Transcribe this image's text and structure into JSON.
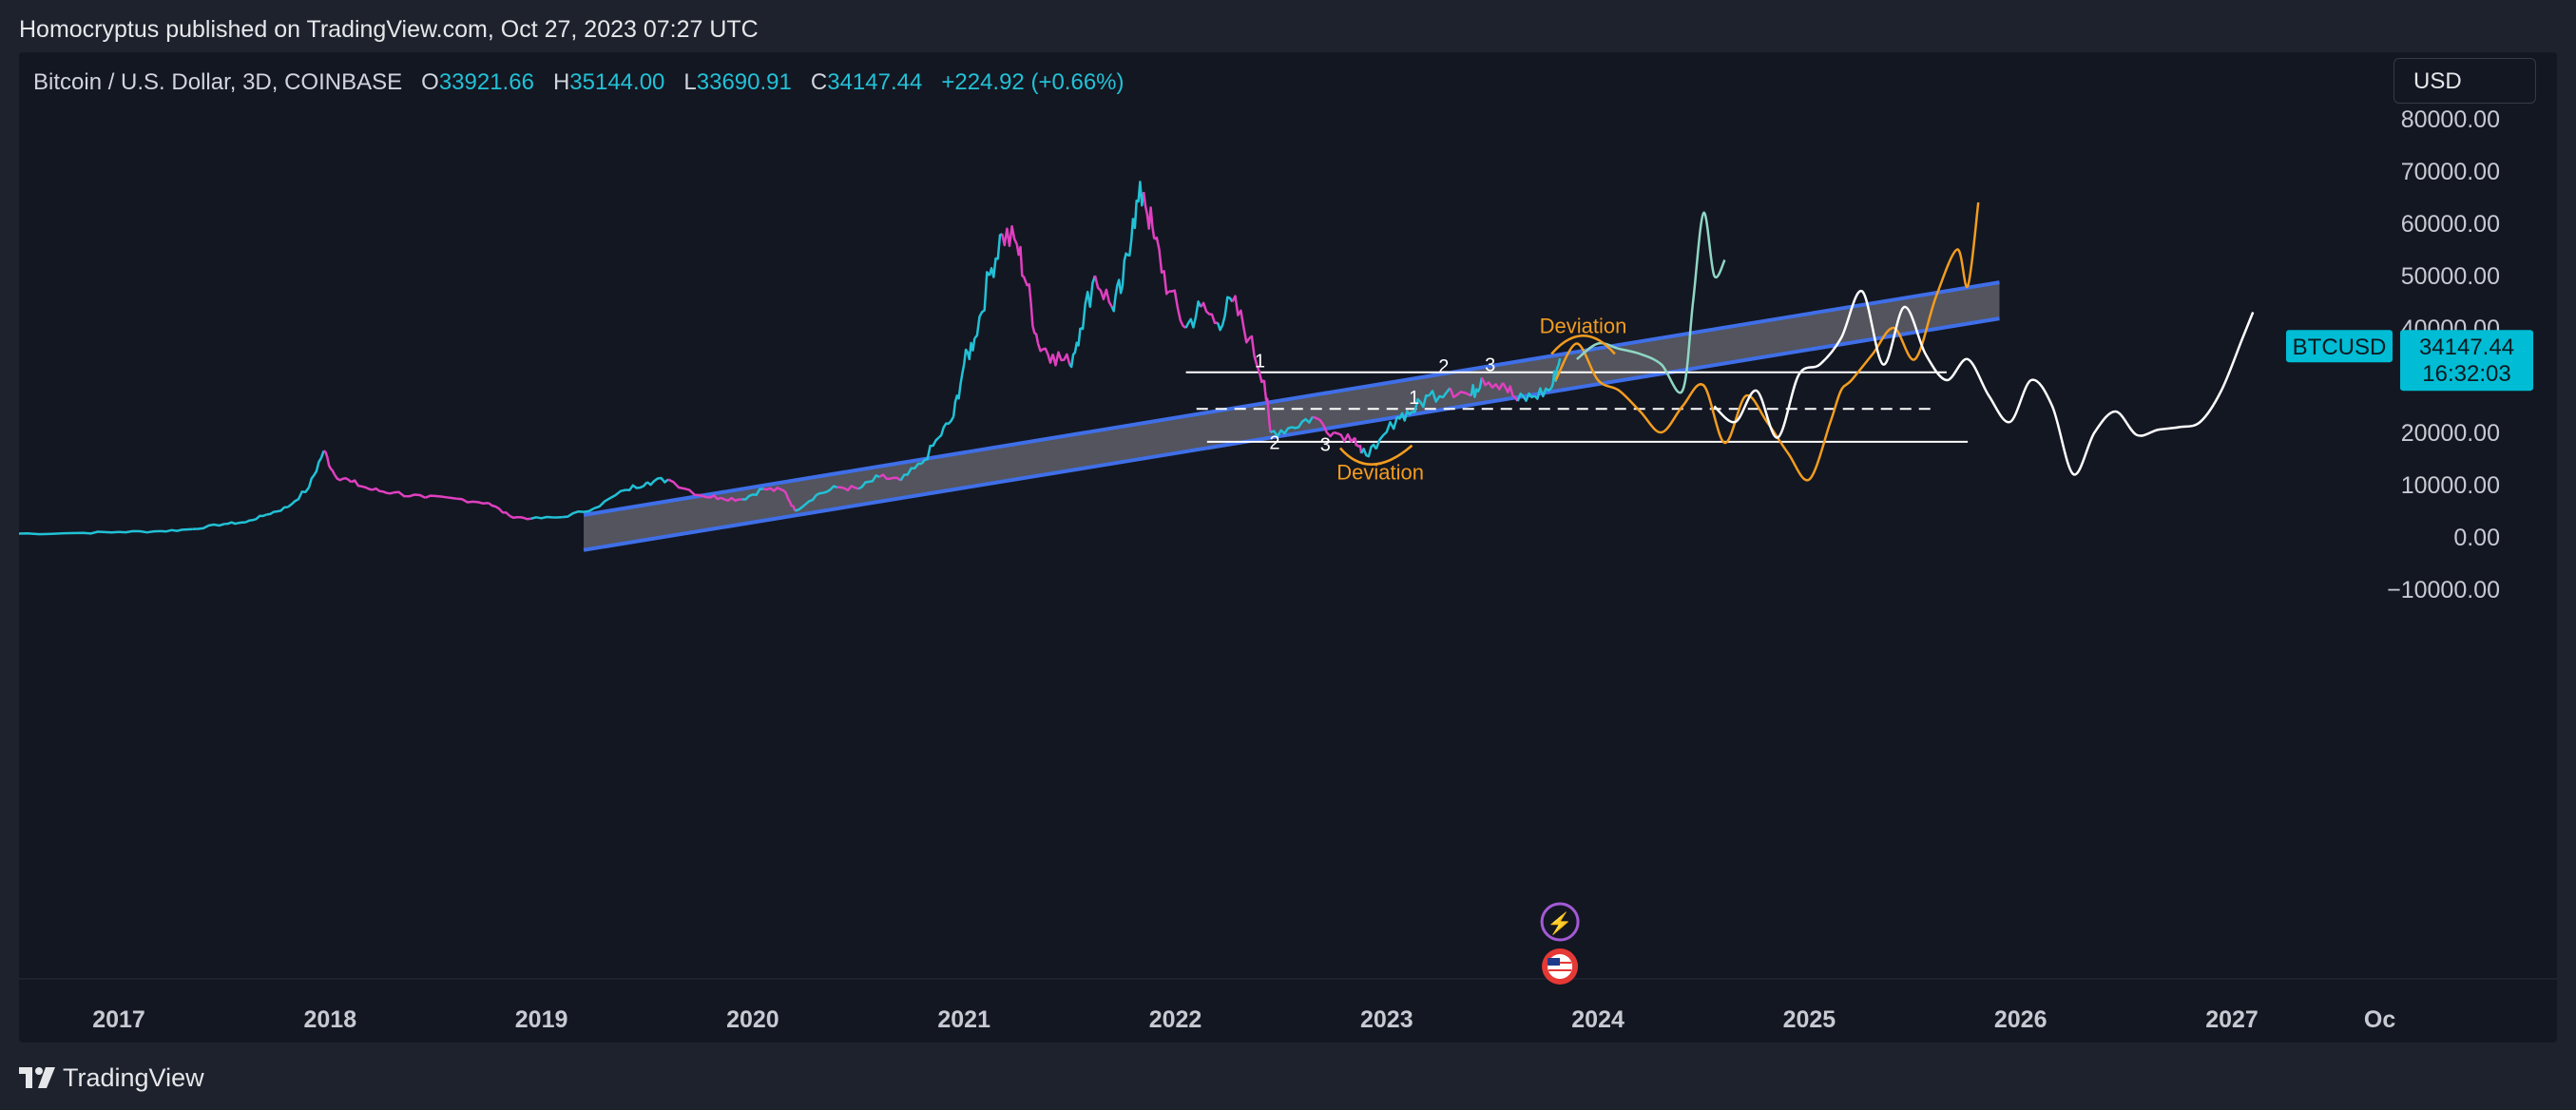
{
  "header": {
    "published": "Homocryptus published on TradingView.com, Oct 27, 2023 07:27 UTC"
  },
  "legend": {
    "symbol": "Bitcoin / U.S. Dollar, 3D, COINBASE",
    "o_label": "O",
    "o_value": "33921.66",
    "h_label": "H",
    "h_value": "35144.00",
    "l_label": "L",
    "l_value": "33690.91",
    "c_label": "C",
    "c_value": "34147.44",
    "change": "+224.92 (+0.66%)"
  },
  "currency_button": "USD",
  "price_tag": {
    "symbol": "BTCUSD",
    "price": "34147.44",
    "countdown": "16:32:03"
  },
  "annotations": {
    "deviation_top": "Deviation",
    "deviation_bottom": "Deviation",
    "counts": [
      "1",
      "2",
      "3",
      "1",
      "2",
      "3"
    ]
  },
  "footer": {
    "brand": "TradingView"
  },
  "colors": {
    "background": "#131722",
    "channel_line": "#3f6fe8",
    "channel_fill": "#6a6a72",
    "candle_up": "#22c1d6",
    "candle_down": "#e040c0",
    "projection_orange": "#f39c1f",
    "projection_white": "#ffffff",
    "projection_green": "#8fd6c4",
    "price_tag_bg": "#00bcd4"
  },
  "chart_data": {
    "type": "line",
    "title": "Bitcoin / U.S. Dollar, 3D, COINBASE",
    "ylabel": "",
    "xlabel": "",
    "ylim": [
      -15000,
      80000
    ],
    "y_ticks": [
      80000,
      70000,
      60000,
      50000,
      40000,
      30000,
      20000,
      10000,
      0,
      -10000
    ],
    "y_tick_labels": [
      "80000.00",
      "70000.00",
      "60000.00",
      "50000.00",
      "40000.00",
      "30000.00",
      "20000.00",
      "10000.00",
      "0.00",
      "−10000.00"
    ],
    "x_ticks": [
      2017,
      2018,
      2019,
      2020,
      2021,
      2022,
      2023,
      2024,
      2025,
      2026,
      2027,
      2027.7
    ],
    "x_tick_labels": [
      "2017",
      "2018",
      "2019",
      "2020",
      "2021",
      "2022",
      "2023",
      "2024",
      "2025",
      "2026",
      "2027",
      "Oc"
    ],
    "last_price": 34147.44,
    "series": [
      {
        "name": "BTCUSD",
        "x": [
          2016.45,
          2016.8,
          2017.0,
          2017.2,
          2017.35,
          2017.5,
          2017.6,
          2017.7,
          2017.8,
          2017.9,
          2017.97,
          2018.02,
          2018.1,
          2018.2,
          2018.3,
          2018.45,
          2018.6,
          2018.75,
          2018.85,
          2018.95,
          2019.1,
          2019.25,
          2019.4,
          2019.5,
          2019.6,
          2019.75,
          2019.85,
          2019.95,
          2020.05,
          2020.15,
          2020.2,
          2020.3,
          2020.4,
          2020.5,
          2020.6,
          2020.7,
          2020.8,
          2020.88,
          2020.95,
          2021.0,
          2021.05,
          2021.12,
          2021.18,
          2021.25,
          2021.3,
          2021.35,
          2021.42,
          2021.5,
          2021.55,
          2021.62,
          2021.7,
          2021.75,
          2021.8,
          2021.85,
          2021.9,
          2021.97,
          2022.05,
          2022.12,
          2022.2,
          2022.27,
          2022.35,
          2022.42,
          2022.45,
          2022.55,
          2022.65,
          2022.75,
          2022.85,
          2022.88,
          2022.95,
          2023.05,
          2023.12,
          2023.2,
          2023.3,
          2023.4,
          2023.45,
          2023.55,
          2023.62,
          2023.7,
          2023.78,
          2023.82
        ],
        "values": [
          600,
          750,
          950,
          1100,
          1500,
          2500,
          2800,
          4300,
          5700,
          9500,
          16500,
          12000,
          10500,
          9000,
          8500,
          7500,
          7300,
          6500,
          4000,
          3500,
          3800,
          5500,
          9000,
          10500,
          11000,
          8000,
          7500,
          7200,
          9200,
          8800,
          5000,
          8000,
          9500,
          9200,
          11500,
          10800,
          14000,
          19000,
          23000,
          33000,
          38000,
          50000,
          58000,
          56000,
          48000,
          37000,
          35000,
          33000,
          40000,
          50000,
          44000,
          48000,
          61000,
          66000,
          57000,
          47000,
          40000,
          44000,
          41000,
          45000,
          38000,
          30000,
          20000,
          21000,
          23000,
          20000,
          19000,
          16000,
          16800,
          23000,
          24000,
          27000,
          28500,
          27000,
          30500,
          29500,
          26000,
          27000,
          28500,
          34147
        ]
      },
      {
        "name": "Channel upper",
        "x": [
          2019.2,
          2025.9
        ],
        "values": [
          4200,
          48700
        ]
      },
      {
        "name": "Channel lower",
        "x": [
          2019.2,
          2025.9
        ],
        "values": [
          -2500,
          41800
        ]
      },
      {
        "name": "Projection white",
        "x": [
          2024.55,
          2024.65,
          2024.75,
          2024.85,
          2024.95,
          2025.05,
          2025.15,
          2025.25,
          2025.35,
          2025.45,
          2025.55,
          2025.65,
          2025.75,
          2025.85,
          2025.95,
          2026.05,
          2026.15,
          2026.25,
          2026.35,
          2026.45,
          2026.55,
          2026.65,
          2026.75,
          2026.85,
          2026.95,
          2027.05,
          2027.1
        ],
        "values": [
          25000,
          22000,
          28000,
          19000,
          31000,
          33000,
          38000,
          47000,
          33000,
          44000,
          35000,
          30000,
          34000,
          27000,
          22000,
          30000,
          25000,
          12000,
          20000,
          24000,
          19500,
          20500,
          21000,
          22000,
          28000,
          38000,
          43000
        ]
      },
      {
        "name": "Projection orange",
        "x": [
          2023.8,
          2023.9,
          2024.0,
          2024.1,
          2024.2,
          2024.3,
          2024.4,
          2024.5,
          2024.6,
          2024.7,
          2024.8,
          2024.9,
          2025.0,
          2025.1,
          2025.15,
          2025.2,
          2025.3,
          2025.4,
          2025.5,
          2025.6,
          2025.7,
          2025.75,
          2025.8
        ],
        "values": [
          30000,
          37000,
          30000,
          28000,
          24000,
          20000,
          25000,
          29000,
          18000,
          27000,
          22000,
          16000,
          11000,
          22000,
          28000,
          30000,
          35000,
          40000,
          34000,
          46000,
          55000,
          48000,
          64000
        ]
      },
      {
        "name": "Projection green",
        "x": [
          2023.9,
          2024.0,
          2024.1,
          2024.2,
          2024.3,
          2024.4,
          2024.45,
          2024.5,
          2024.55,
          2024.6
        ],
        "values": [
          34000,
          37000,
          36000,
          35000,
          33000,
          28000,
          45000,
          62000,
          50000,
          53000
        ]
      }
    ],
    "horizontal_levels": [
      {
        "value": 31500,
        "style": "solid",
        "x_range": [
          2022.05,
          2025.65
        ]
      },
      {
        "value": 24500,
        "style": "dashed",
        "x_range": [
          2022.1,
          2025.6
        ]
      },
      {
        "value": 18200,
        "style": "solid",
        "x_range": [
          2022.15,
          2025.75
        ]
      }
    ],
    "annotations": [
      {
        "text": "Deviation",
        "x": 2023.93,
        "y": 39000
      },
      {
        "text": "Deviation",
        "x": 2022.97,
        "y": 11000
      },
      {
        "text": "1",
        "x": 2022.4,
        "y": 32500
      },
      {
        "text": "2",
        "x": 2022.47,
        "y": 16800
      },
      {
        "text": "3",
        "x": 2022.71,
        "y": 16500
      },
      {
        "text": "1",
        "x": 2023.13,
        "y": 25500
      },
      {
        "text": "2",
        "x": 2023.27,
        "y": 31500
      },
      {
        "text": "3",
        "x": 2023.49,
        "y": 31700
      }
    ],
    "grid": false,
    "legend_placement": "top-left"
  }
}
